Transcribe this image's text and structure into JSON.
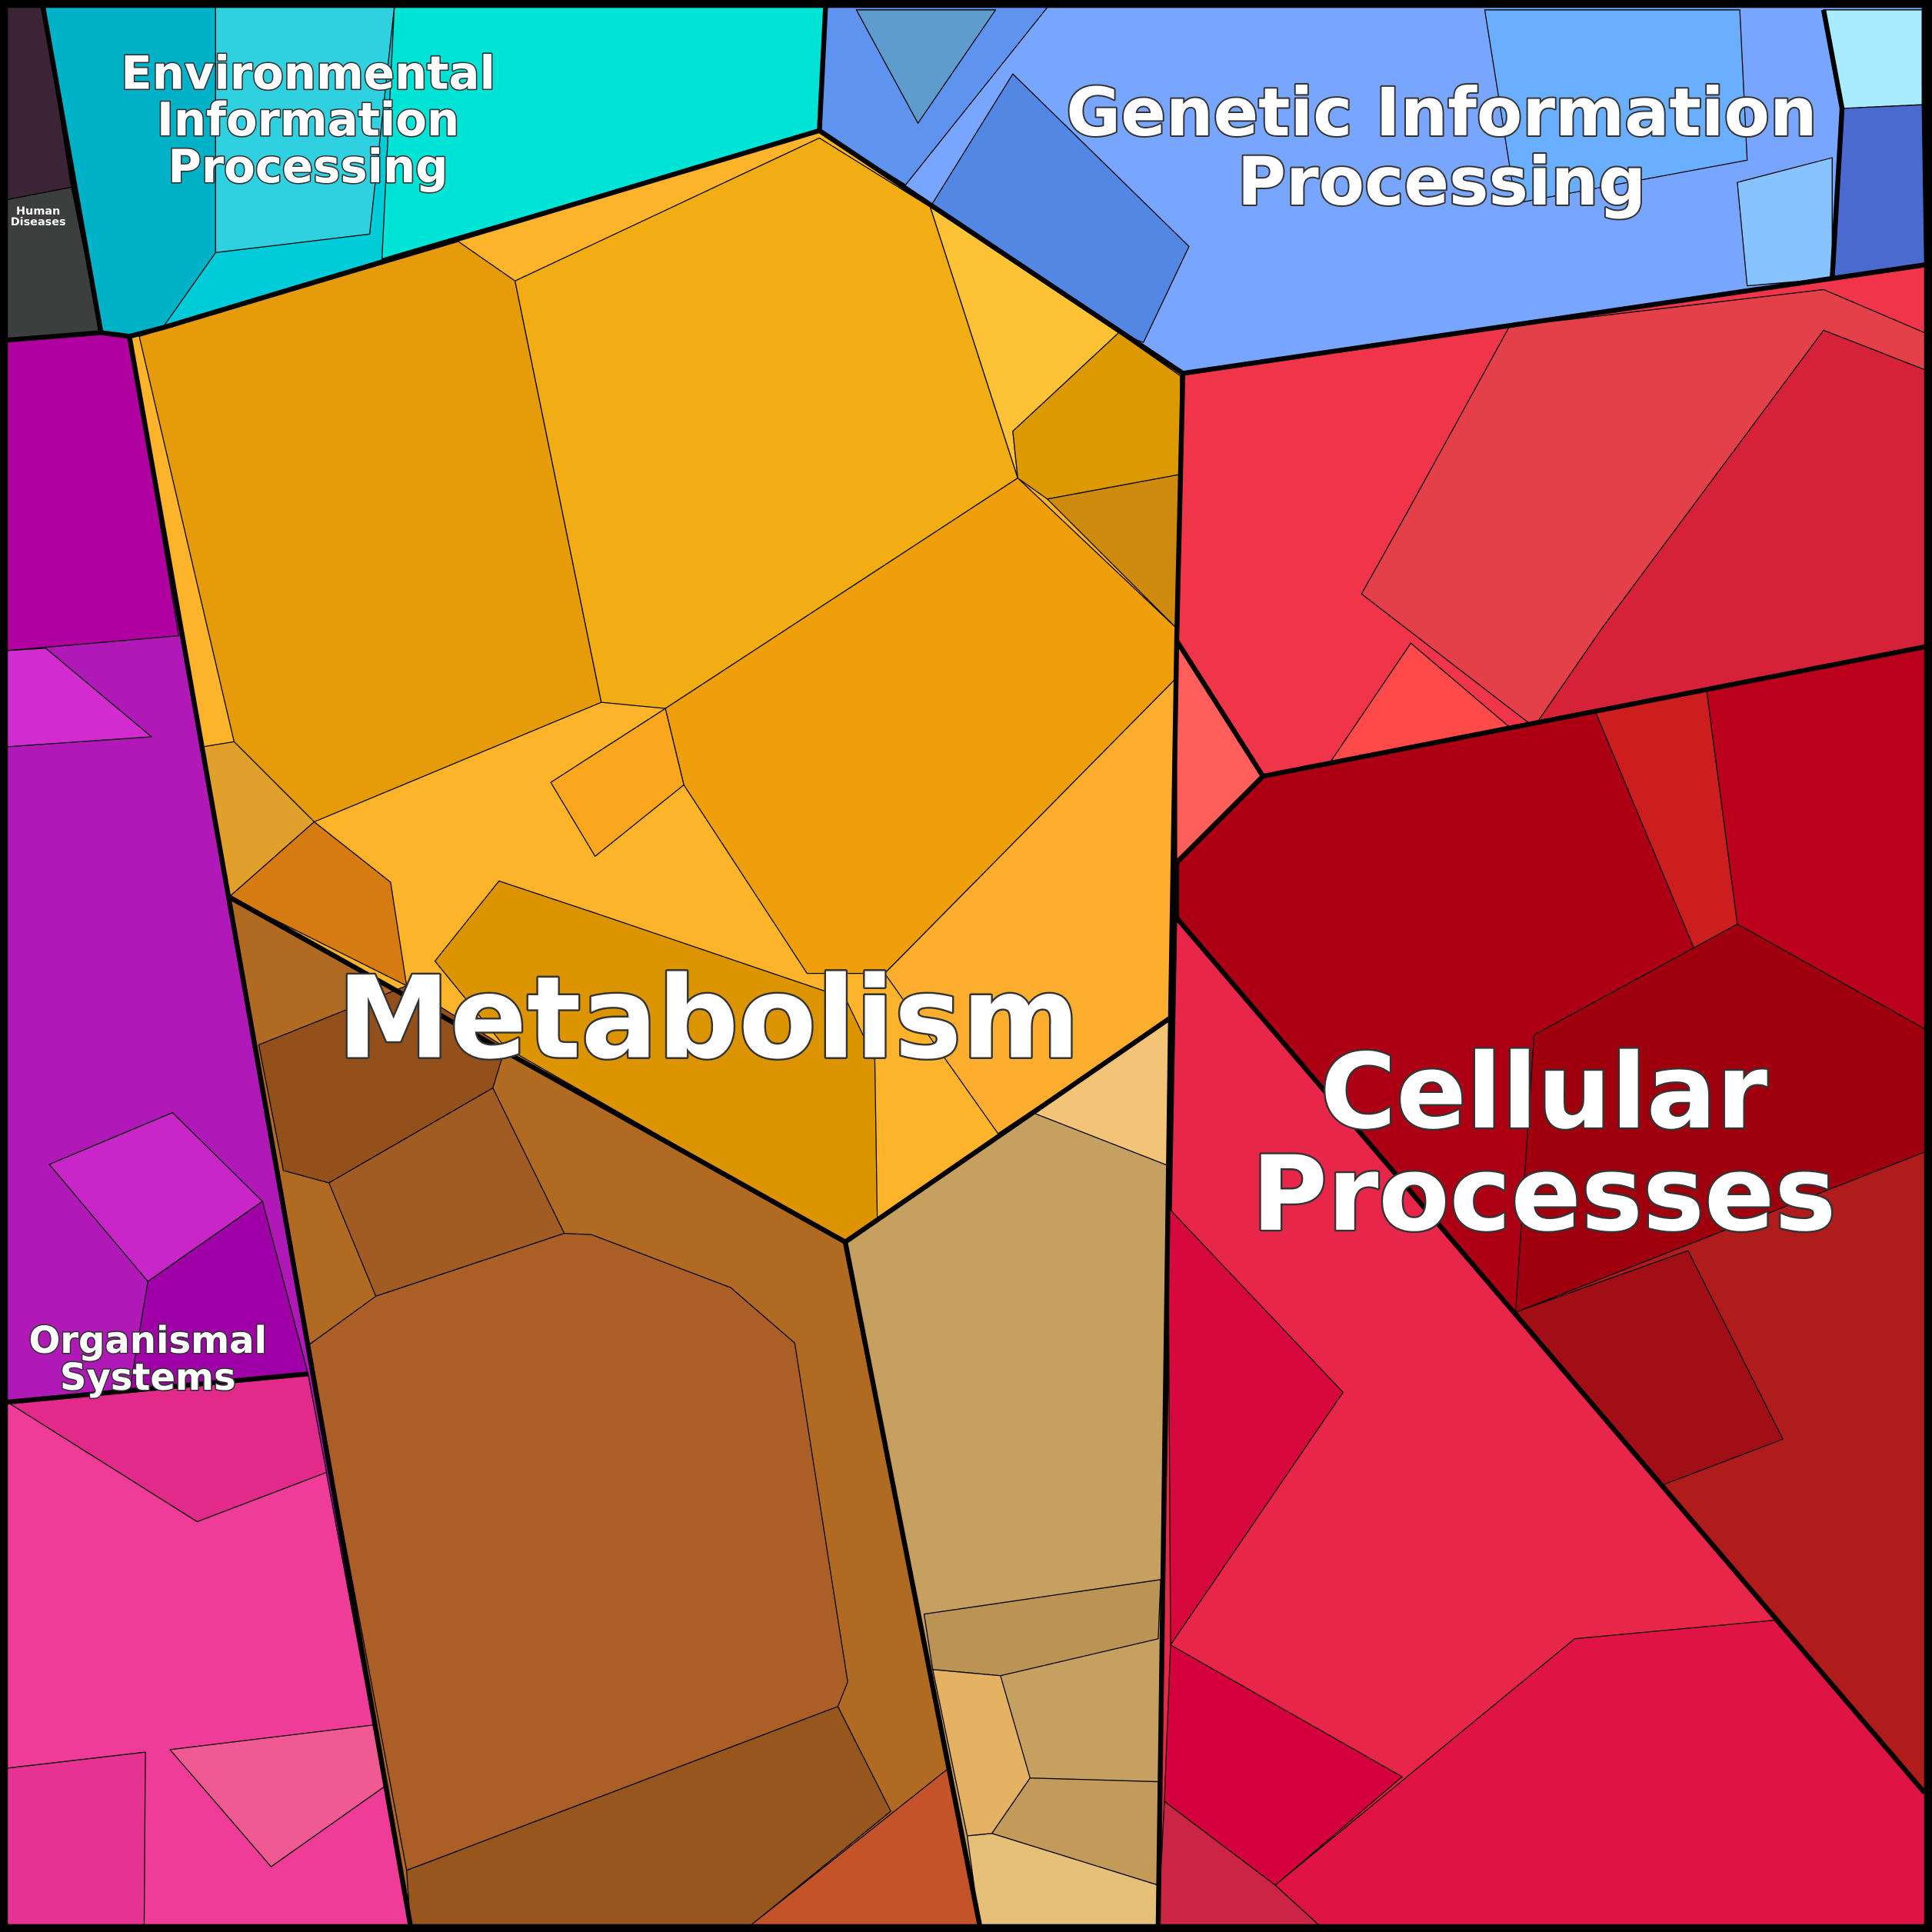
{
  "regions": [
    {
      "label_lines": [
        "Metabolism"
      ]
    },
    {
      "label_lines": [
        "Cellular",
        "Processes"
      ]
    },
    {
      "label_lines": [
        "Genetic Information",
        "Processing"
      ]
    },
    {
      "label_lines": [
        "Environmental",
        "Information",
        "Processing"
      ]
    },
    {
      "label_lines": [
        "Organismal",
        "Systems"
      ]
    },
    {
      "label_lines": [
        "Human",
        "Diseases"
      ]
    }
  ]
}
